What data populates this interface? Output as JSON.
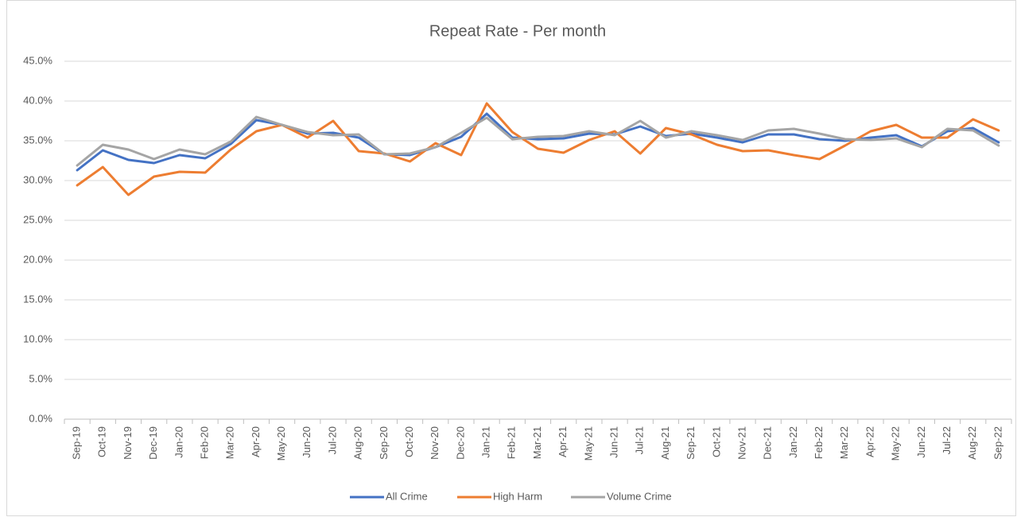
{
  "chart_data": {
    "type": "line",
    "title": "Repeat Rate - Per month",
    "categories": [
      "Sep-19",
      "Oct-19",
      "Nov-19",
      "Dec-19",
      "Jan-20",
      "Feb-20",
      "Mar-20",
      "Apr-20",
      "May-20",
      "Jun-20",
      "Jul-20",
      "Aug-20",
      "Sep-20",
      "Oct-20",
      "Nov-20",
      "Dec-20",
      "Jan-21",
      "Feb-21",
      "Mar-21",
      "Apr-21",
      "May-21",
      "Jun-21",
      "Jul-21",
      "Aug-21",
      "Sep-21",
      "Oct-21",
      "Nov-21",
      "Dec-21",
      "Jan-22",
      "Feb-22",
      "Mar-22",
      "Apr-22",
      "May-22",
      "Jun-22",
      "Jul-22",
      "Aug-22",
      "Sep-22"
    ],
    "series": [
      {
        "name": "All Crime",
        "color": "#4472c4",
        "values": [
          31.3,
          33.8,
          32.6,
          32.2,
          33.2,
          32.8,
          34.6,
          37.6,
          37.0,
          35.9,
          36.0,
          35.4,
          33.3,
          33.2,
          34.2,
          35.5,
          38.4,
          35.4,
          35.2,
          35.3,
          35.9,
          35.8,
          36.8,
          35.6,
          35.9,
          35.4,
          34.8,
          35.8,
          35.8,
          35.2,
          35.0,
          35.4,
          35.7,
          34.3,
          36.2,
          36.6,
          34.8
        ]
      },
      {
        "name": "High Harm",
        "color": "#ed7d31",
        "values": [
          29.4,
          31.7,
          28.2,
          30.5,
          31.1,
          31.0,
          33.9,
          36.2,
          37.0,
          35.4,
          37.5,
          33.7,
          33.4,
          32.4,
          34.7,
          33.2,
          39.7,
          36.1,
          34.0,
          33.5,
          35.1,
          36.2,
          33.4,
          36.6,
          35.8,
          34.5,
          33.7,
          33.8,
          33.2,
          32.7,
          34.4,
          36.2,
          37.0,
          35.4,
          35.4,
          37.7,
          36.3
        ]
      },
      {
        "name": "Volume Crime",
        "color": "#a5a5a5",
        "values": [
          31.9,
          34.5,
          33.9,
          32.7,
          33.9,
          33.3,
          34.9,
          38.0,
          37.0,
          36.1,
          35.7,
          35.8,
          33.3,
          33.4,
          34.2,
          36.0,
          37.9,
          35.2,
          35.5,
          35.6,
          36.2,
          35.7,
          37.5,
          35.4,
          36.2,
          35.7,
          35.1,
          36.3,
          36.5,
          35.9,
          35.2,
          35.1,
          35.3,
          34.2,
          36.5,
          36.3,
          34.4
        ]
      }
    ],
    "ylim": [
      0,
      45
    ],
    "yticks": [
      {
        "value": 0,
        "label": "0.0%"
      },
      {
        "value": 5,
        "label": "5.0%"
      },
      {
        "value": 10,
        "label": "10.0%"
      },
      {
        "value": 15,
        "label": "15.0%"
      },
      {
        "value": 20,
        "label": "20.0%"
      },
      {
        "value": 25,
        "label": "25.0%"
      },
      {
        "value": 30,
        "label": "30.0%"
      },
      {
        "value": 35,
        "label": "35.0%"
      },
      {
        "value": 40,
        "label": "40.0%"
      },
      {
        "value": 45,
        "label": "45.0%"
      }
    ],
    "grid": true,
    "legend": "bottom"
  }
}
